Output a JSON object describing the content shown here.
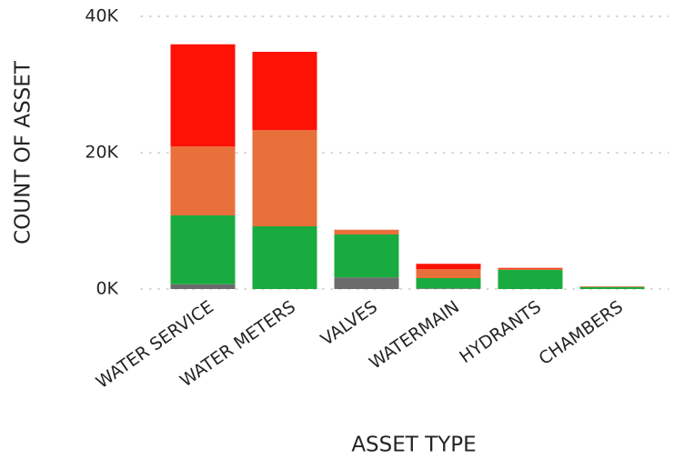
{
  "chart_data": {
    "type": "stacked_bar",
    "xlabel": "ASSET TYPE",
    "ylabel": "COUNT OF ASSET",
    "categories": [
      "WATER SERVICE",
      "WATER METERS",
      "VALVES",
      "WATERMAIN",
      "HYDRANTS",
      "CHAMBERS"
    ],
    "series": [
      {
        "color": "#6b6b6b",
        "values": [
          700,
          0,
          1700,
          100,
          0,
          0
        ]
      },
      {
        "color": "#1aab40",
        "values": [
          10100,
          9200,
          6300,
          1500,
          2800,
          300
        ]
      },
      {
        "color": "#e8703a",
        "values": [
          10100,
          14100,
          700,
          1300,
          200,
          100
        ]
      },
      {
        "color": "#fd1205",
        "values": [
          15000,
          11500,
          0,
          800,
          100,
          0
        ]
      }
    ],
    "ylim": [
      0,
      40000
    ],
    "yticks": [
      {
        "value": 0,
        "label": "0K"
      },
      {
        "value": 20000,
        "label": "20K"
      },
      {
        "value": 40000,
        "label": "40K"
      }
    ],
    "grid": true
  }
}
